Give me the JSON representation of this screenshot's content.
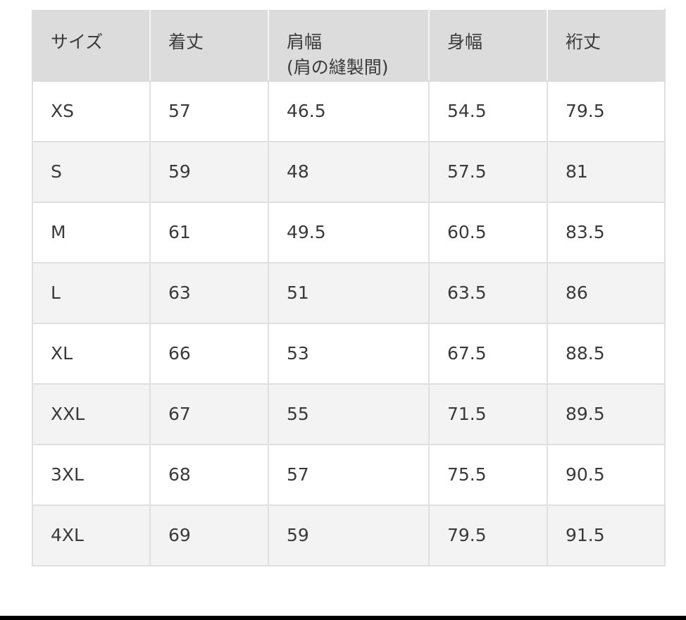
{
  "table": {
    "headers": [
      {
        "label": "サイズ",
        "sub": ""
      },
      {
        "label": "着丈",
        "sub": ""
      },
      {
        "label": "肩幅",
        "sub": "(肩の縫製間)"
      },
      {
        "label": "身幅",
        "sub": ""
      },
      {
        "label": "裄丈",
        "sub": ""
      }
    ],
    "rows": [
      [
        "XS",
        "57",
        "46.5",
        "54.5",
        "79.5"
      ],
      [
        "S",
        "59",
        "48",
        "57.5",
        "81"
      ],
      [
        "M",
        "61",
        "49.5",
        "60.5",
        "83.5"
      ],
      [
        "L",
        "63",
        "51",
        "63.5",
        "86"
      ],
      [
        "XL",
        "66",
        "53",
        "67.5",
        "88.5"
      ],
      [
        "XXL",
        "67",
        "55",
        "71.5",
        "89.5"
      ],
      [
        "3XL",
        "68",
        "57",
        "75.5",
        "90.5"
      ],
      [
        "4XL",
        "69",
        "59",
        "79.5",
        "91.5"
      ]
    ]
  },
  "colors": {
    "header_bg": "#dcdcdc",
    "stripe_bg": "#f3f3f3",
    "text": "#3a3a3a"
  }
}
